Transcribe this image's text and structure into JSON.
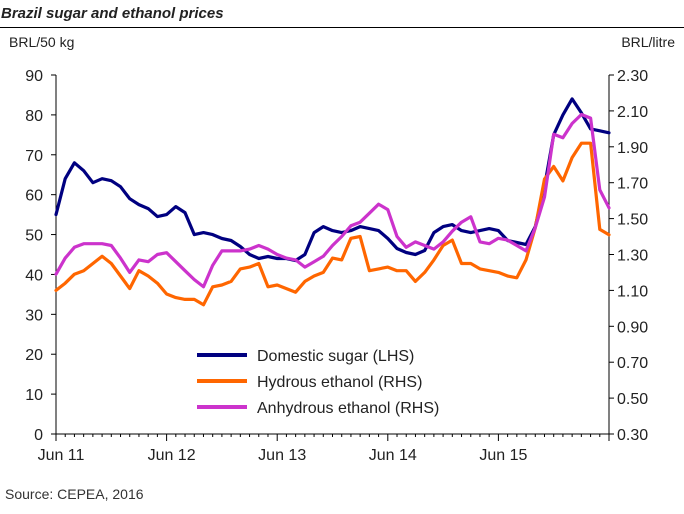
{
  "chart_data": {
    "type": "line",
    "title": "Brazil sugar and ethanol prices",
    "source": "Source: CEPEA, 2016",
    "ylabel_left": "BRL/50 kg",
    "ylabel_right": "BRL/litre",
    "ylim_left": [
      0,
      90
    ],
    "ylim_right": [
      0.3,
      2.3
    ],
    "yticks_left": [
      "0",
      "10",
      "20",
      "30",
      "40",
      "50",
      "60",
      "70",
      "80",
      "90"
    ],
    "yticks_right": [
      "0.30",
      "0.50",
      "0.70",
      "0.90",
      "1.10",
      "1.30",
      "1.50",
      "1.70",
      "1.90",
      "2.10",
      "2.30"
    ],
    "xticks": [
      "Jun 11",
      "Jun 12",
      "Jun 13",
      "Jun 14",
      "Jun 15"
    ],
    "x_start": "2011-06",
    "x_end": "2016-06",
    "grid": false,
    "legend_position": "bottom-center",
    "series": [
      {
        "name": "Domestic sugar (LHS)",
        "axis": "left",
        "color": "#000080",
        "values": [
          55,
          64,
          68,
          66,
          63,
          64,
          63.5,
          62,
          59,
          57.5,
          56.5,
          54.5,
          55,
          57,
          55.5,
          50,
          50.5,
          50,
          49,
          48.5,
          47,
          45,
          44,
          44.5,
          44,
          44,
          43.5,
          45,
          50.5,
          52,
          51,
          50.5,
          51,
          52,
          51.5,
          51,
          49,
          46.5,
          45.5,
          45,
          46,
          50.5,
          52,
          52.5,
          51,
          50.5,
          51,
          51.5,
          51,
          48.5,
          48,
          47.5,
          52,
          62,
          75,
          80,
          84,
          80.5,
          76.5,
          76,
          75.5
        ]
      },
      {
        "name": "Hydrous ethanol (RHS)",
        "axis": "right",
        "color": "#FF6600",
        "values": [
          1.1,
          1.14,
          1.19,
          1.21,
          1.25,
          1.29,
          1.25,
          1.18,
          1.11,
          1.21,
          1.18,
          1.14,
          1.08,
          1.06,
          1.05,
          1.05,
          1.02,
          1.12,
          1.13,
          1.15,
          1.22,
          1.23,
          1.25,
          1.12,
          1.13,
          1.11,
          1.09,
          1.15,
          1.18,
          1.2,
          1.28,
          1.27,
          1.39,
          1.4,
          1.21,
          1.22,
          1.23,
          1.21,
          1.21,
          1.15,
          1.2,
          1.27,
          1.35,
          1.38,
          1.25,
          1.25,
          1.22,
          1.21,
          1.2,
          1.18,
          1.17,
          1.27,
          1.45,
          1.72,
          1.79,
          1.71,
          1.84,
          1.92,
          1.92,
          1.44,
          1.41
        ]
      },
      {
        "name": "Anhydrous ethanol (RHS)",
        "axis": "right",
        "color": "#CC33CC",
        "values": [
          1.19,
          1.28,
          1.34,
          1.36,
          1.36,
          1.36,
          1.35,
          1.28,
          1.2,
          1.27,
          1.26,
          1.3,
          1.31,
          1.26,
          1.21,
          1.16,
          1.12,
          1.24,
          1.32,
          1.32,
          1.32,
          1.33,
          1.35,
          1.33,
          1.3,
          1.28,
          1.27,
          1.23,
          1.26,
          1.29,
          1.35,
          1.4,
          1.46,
          1.48,
          1.53,
          1.58,
          1.55,
          1.4,
          1.34,
          1.37,
          1.35,
          1.33,
          1.37,
          1.43,
          1.48,
          1.51,
          1.37,
          1.36,
          1.39,
          1.38,
          1.35,
          1.32,
          1.45,
          1.62,
          1.97,
          1.95,
          2.03,
          2.08,
          2.06,
          1.66,
          1.56
        ]
      }
    ]
  }
}
